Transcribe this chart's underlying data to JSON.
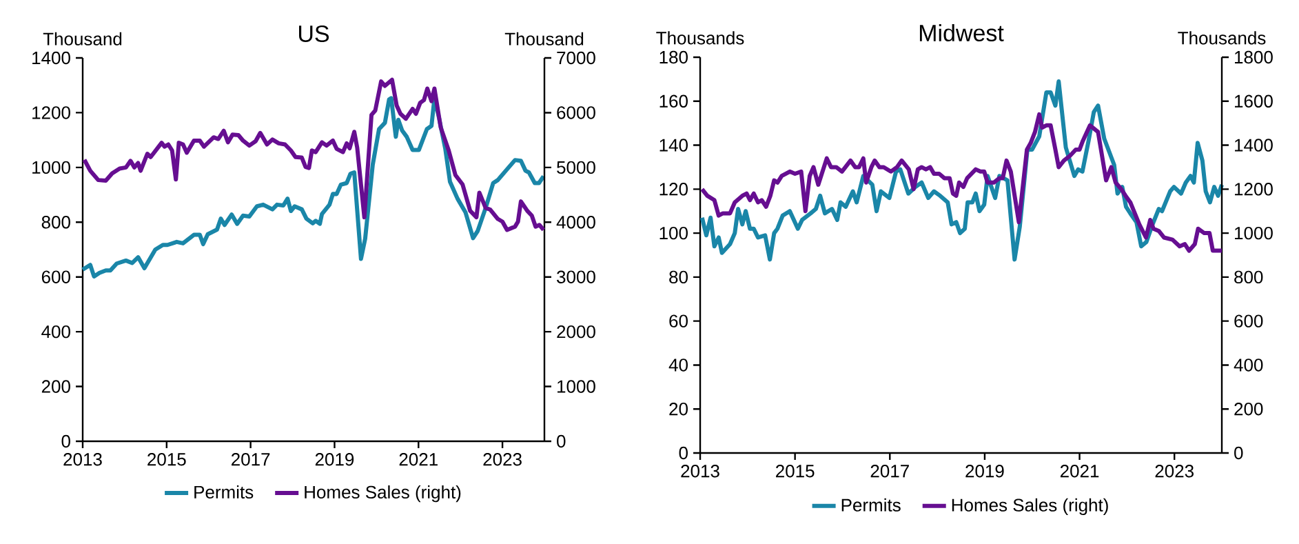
{
  "chart_data": [
    {
      "type": "line",
      "title": "US",
      "ylabel": "Thousand",
      "y2label": "Thousand",
      "xlim": [
        2013,
        2024
      ],
      "xticks": [
        2013,
        2015,
        2017,
        2019,
        2021,
        2023
      ],
      "ylim": [
        0,
        1400
      ],
      "yticks": [
        0,
        200,
        400,
        600,
        800,
        1000,
        1200,
        1400
      ],
      "y2lim": [
        0,
        7000
      ],
      "y2ticks": [
        0,
        1000,
        2000,
        3000,
        4000,
        5000,
        6000,
        7000
      ],
      "legend": "bottom",
      "series": [
        {
          "name": "Permits",
          "color": "#1a86a8",
          "x": [
            2013.0,
            2013.18,
            2013.27,
            2013.4,
            2013.55,
            2013.66,
            2013.81,
            2014.03,
            2014.18,
            2014.32,
            2014.47,
            2014.73,
            2014.91,
            2015.02,
            2015.24,
            2015.39,
            2015.65,
            2015.79,
            2015.87,
            2015.98,
            2016.2,
            2016.29,
            2016.38,
            2016.55,
            2016.68,
            2016.82,
            2016.97,
            2017.15,
            2017.3,
            2017.52,
            2017.63,
            2017.78,
            2017.88,
            2017.96,
            2018.05,
            2018.22,
            2018.33,
            2018.48,
            2018.55,
            2018.65,
            2018.7,
            2018.88,
            2018.96,
            2019.05,
            2019.15,
            2019.29,
            2019.38,
            2019.47,
            2019.63,
            2019.73,
            2019.91,
            2020.06,
            2020.2,
            2020.3,
            2020.35,
            2020.46,
            2020.52,
            2020.61,
            2020.72,
            2020.86,
            2021.01,
            2021.2,
            2021.31,
            2021.38,
            2021.49,
            2021.64,
            2021.75,
            2021.93,
            2022.12,
            2022.3,
            2022.41,
            2022.6,
            2022.78,
            2022.89,
            2023.08,
            2023.3,
            2023.44,
            2023.55,
            2023.63,
            2023.77,
            2023.87,
            2023.98
          ],
          "values": [
            627,
            644,
            602,
            615,
            624,
            624,
            649,
            660,
            651,
            672,
            632,
            700,
            717,
            717,
            728,
            723,
            754,
            754,
            720,
            756,
            773,
            813,
            790,
            828,
            794,
            824,
            821,
            858,
            864,
            847,
            864,
            861,
            886,
            841,
            858,
            847,
            813,
            796,
            805,
            794,
            830,
            864,
            903,
            903,
            937,
            943,
            977,
            982,
            666,
            740,
            1010,
            1140,
            1163,
            1248,
            1253,
            1112,
            1174,
            1135,
            1112,
            1064,
            1064,
            1140,
            1152,
            1253,
            1180,
            1067,
            948,
            886,
            836,
            742,
            768,
            852,
            943,
            954,
            988,
            1027,
            1024,
            988,
            982,
            943,
            943,
            968
          ]
        },
        {
          "name": "Homes Sales (right)",
          "color": "#660e91",
          "axis": "y2",
          "x": [
            2013.04,
            2013.18,
            2013.37,
            2013.55,
            2013.7,
            2013.88,
            2014.03,
            2014.14,
            2014.23,
            2014.32,
            2014.38,
            2014.54,
            2014.62,
            2014.88,
            2014.95,
            2015.04,
            2015.13,
            2015.22,
            2015.29,
            2015.39,
            2015.48,
            2015.65,
            2015.79,
            2015.89,
            2016.12,
            2016.23,
            2016.36,
            2016.46,
            2016.57,
            2016.71,
            2016.82,
            2016.97,
            2017.12,
            2017.23,
            2017.39,
            2017.52,
            2017.67,
            2017.82,
            2017.96,
            2018.07,
            2018.22,
            2018.31,
            2018.39,
            2018.46,
            2018.55,
            2018.7,
            2018.81,
            2018.96,
            2019.05,
            2019.2,
            2019.29,
            2019.36,
            2019.47,
            2019.54,
            2019.71,
            2019.88,
            2019.97,
            2020.11,
            2020.2,
            2020.37,
            2020.48,
            2020.57,
            2020.7,
            2020.86,
            2020.94,
            2021.04,
            2021.13,
            2021.21,
            2021.31,
            2021.38,
            2021.53,
            2021.72,
            2021.88,
            2022.05,
            2022.23,
            2022.38,
            2022.45,
            2022.6,
            2022.71,
            2022.89,
            2023.0,
            2023.11,
            2023.3,
            2023.37,
            2023.44,
            2023.59,
            2023.7,
            2023.79,
            2023.88,
            2023.98
          ],
          "values": [
            5140,
            4940,
            4770,
            4760,
            4890,
            4980,
            5000,
            5120,
            5000,
            5080,
            4940,
            5250,
            5190,
            5450,
            5380,
            5420,
            5310,
            4780,
            5450,
            5420,
            5270,
            5490,
            5490,
            5380,
            5550,
            5520,
            5670,
            5460,
            5600,
            5590,
            5490,
            5400,
            5480,
            5630,
            5420,
            5510,
            5440,
            5420,
            5310,
            5190,
            5180,
            5010,
            4990,
            5310,
            5280,
            5460,
            5400,
            5490,
            5340,
            5280,
            5440,
            5350,
            5650,
            5360,
            4090,
            5960,
            6040,
            6570,
            6490,
            6600,
            6130,
            5980,
            5890,
            6070,
            5980,
            6180,
            6230,
            6440,
            6210,
            6440,
            5730,
            5310,
            4860,
            4690,
            4210,
            4090,
            4540,
            4260,
            4230,
            4060,
            4010,
            3860,
            3920,
            4010,
            4380,
            4210,
            4120,
            3920,
            3950,
            3860
          ]
        }
      ]
    },
    {
      "type": "line",
      "title": "Midwest",
      "ylabel": "Thousands",
      "y2label": "Thousands",
      "xlim": [
        2013,
        2024
      ],
      "xticks": [
        2013,
        2015,
        2017,
        2019,
        2021,
        2023
      ],
      "ylim": [
        0,
        180
      ],
      "yticks": [
        0,
        20,
        40,
        60,
        80,
        100,
        120,
        140,
        160,
        180
      ],
      "y2lim": [
        0,
        1800
      ],
      "y2ticks": [
        0,
        200,
        400,
        600,
        800,
        1000,
        1200,
        1400,
        1600,
        1800
      ],
      "legend": "bottom",
      "series": [
        {
          "name": "Permits",
          "color": "#1a86a8",
          "x": [
            2013.04,
            2013.13,
            2013.22,
            2013.3,
            2013.39,
            2013.46,
            2013.63,
            2013.73,
            2013.8,
            2013.89,
            2013.96,
            2014.05,
            2014.13,
            2014.22,
            2014.37,
            2014.47,
            2014.56,
            2014.63,
            2014.74,
            2014.89,
            2015.06,
            2015.15,
            2015.33,
            2015.44,
            2015.53,
            2015.63,
            2015.78,
            2015.89,
            2015.96,
            2016.07,
            2016.22,
            2016.3,
            2016.44,
            2016.63,
            2016.72,
            2016.81,
            2016.99,
            2017.13,
            2017.22,
            2017.39,
            2017.54,
            2017.67,
            2017.81,
            2017.93,
            2018.06,
            2018.22,
            2018.3,
            2018.4,
            2018.48,
            2018.58,
            2018.64,
            2018.74,
            2018.81,
            2018.89,
            2018.99,
            2019.06,
            2019.22,
            2019.31,
            2019.48,
            2019.63,
            2019.74,
            2019.9,
            2020.0,
            2020.15,
            2020.3,
            2020.39,
            2020.49,
            2020.56,
            2020.71,
            2020.89,
            2020.97,
            2021.06,
            2021.19,
            2021.3,
            2021.39,
            2021.52,
            2021.59,
            2021.73,
            2021.8,
            2021.9,
            2021.98,
            2022.07,
            2022.2,
            2022.3,
            2022.41,
            2022.54,
            2022.67,
            2022.74,
            2022.91,
            2022.99,
            2023.14,
            2023.24,
            2023.34,
            2023.41,
            2023.49,
            2023.59,
            2023.66,
            2023.75,
            2023.84,
            2023.92,
            2024.0
          ],
          "values": [
            107,
            99,
            107,
            94,
            98,
            91,
            95,
            100,
            111,
            104,
            110,
            102,
            102,
            98,
            99,
            88,
            100,
            102,
            108,
            110,
            102,
            106,
            109,
            111,
            117,
            109,
            111,
            106,
            114,
            112,
            119,
            114,
            126,
            122,
            110,
            119,
            116,
            128,
            129,
            118,
            121,
            123,
            116,
            119,
            117,
            114,
            104,
            105,
            100,
            102,
            114,
            114,
            118,
            110,
            113,
            126,
            116,
            126,
            124,
            88,
            103,
            138,
            138,
            144,
            164,
            164,
            158,
            169,
            139,
            126,
            129,
            128,
            142,
            155,
            158,
            143,
            139,
            131,
            118,
            121,
            112,
            109,
            105,
            94,
            96,
            104,
            111,
            110,
            119,
            121,
            118,
            123,
            126,
            123,
            141,
            133,
            119,
            114,
            121,
            117,
            122
          ]
        },
        {
          "name": "Homes Sales (right)",
          "color": "#660e91",
          "axis": "y2",
          "x": [
            2013.04,
            2013.15,
            2013.3,
            2013.39,
            2013.48,
            2013.63,
            2013.73,
            2013.89,
            2013.98,
            2014.05,
            2014.13,
            2014.22,
            2014.3,
            2014.39,
            2014.48,
            2014.56,
            2014.63,
            2014.72,
            2014.89,
            2015.0,
            2015.13,
            2015.22,
            2015.31,
            2015.39,
            2015.49,
            2015.67,
            2015.76,
            2015.87,
            2015.99,
            2016.17,
            2016.27,
            2016.35,
            2016.44,
            2016.5,
            2016.61,
            2016.68,
            2016.78,
            2016.87,
            2017.02,
            2017.15,
            2017.25,
            2017.4,
            2017.5,
            2017.59,
            2017.67,
            2017.76,
            2017.85,
            2017.93,
            2018.04,
            2018.15,
            2018.26,
            2018.33,
            2018.4,
            2018.46,
            2018.55,
            2018.63,
            2018.81,
            2018.91,
            2018.99,
            2019.06,
            2019.19,
            2019.31,
            2019.38,
            2019.46,
            2019.55,
            2019.72,
            2019.89,
            2019.97,
            2020.06,
            2020.15,
            2020.21,
            2020.3,
            2020.39,
            2020.49,
            2020.56,
            2020.67,
            2020.79,
            2020.92,
            2021.0,
            2021.07,
            2021.22,
            2021.39,
            2021.56,
            2021.67,
            2021.76,
            2021.88,
            2021.97,
            2022.07,
            2022.26,
            2022.4,
            2022.49,
            2022.56,
            2022.67,
            2022.78,
            2022.96,
            2023.11,
            2023.22,
            2023.31,
            2023.43,
            2023.5,
            2023.63,
            2023.74,
            2023.81,
            2024.0
          ],
          "values": [
            1200,
            1170,
            1150,
            1080,
            1090,
            1090,
            1140,
            1170,
            1180,
            1150,
            1180,
            1140,
            1150,
            1120,
            1170,
            1240,
            1230,
            1260,
            1280,
            1270,
            1280,
            1100,
            1260,
            1300,
            1220,
            1340,
            1300,
            1300,
            1280,
            1330,
            1300,
            1300,
            1340,
            1230,
            1300,
            1330,
            1300,
            1300,
            1280,
            1300,
            1330,
            1290,
            1200,
            1290,
            1300,
            1290,
            1300,
            1270,
            1270,
            1250,
            1250,
            1180,
            1170,
            1230,
            1210,
            1250,
            1290,
            1280,
            1280,
            1230,
            1230,
            1250,
            1250,
            1330,
            1280,
            1050,
            1380,
            1410,
            1460,
            1540,
            1480,
            1490,
            1490,
            1380,
            1300,
            1330,
            1350,
            1380,
            1380,
            1420,
            1490,
            1460,
            1240,
            1300,
            1230,
            1200,
            1170,
            1140,
            1040,
            980,
            1060,
            1020,
            1010,
            980,
            970,
            940,
            950,
            920,
            950,
            1020,
            1000,
            1000,
            920,
            920
          ]
        }
      ]
    }
  ]
}
